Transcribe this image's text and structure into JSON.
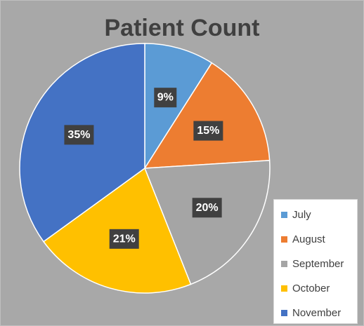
{
  "chart_data": {
    "type": "pie",
    "title": "Patient Count",
    "categories": [
      "July",
      "August",
      "September",
      "October",
      "November"
    ],
    "values": [
      9,
      15,
      20,
      21,
      35
    ],
    "data_labels": [
      "9%",
      "15%",
      "20%",
      "21%",
      "35%"
    ],
    "colors": [
      "#5b9bd5",
      "#ed7d31",
      "#a5a5a5",
      "#ffc000",
      "#4472c4"
    ],
    "legend_position": "bottom-right",
    "start_angle": "top",
    "direction": "clockwise"
  }
}
